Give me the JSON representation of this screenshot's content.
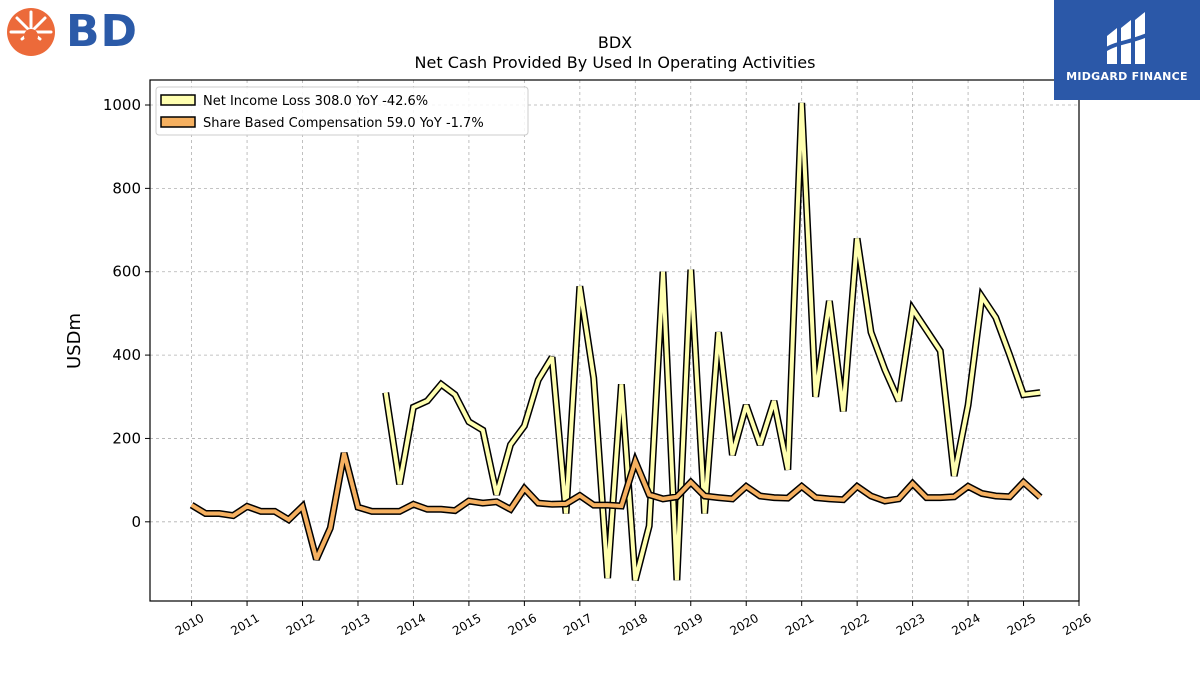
{
  "brand": {
    "company": "BD",
    "partner": "MIDGARD FINANCE"
  },
  "chart_data": {
    "type": "line",
    "title": "BDX",
    "subtitle": "Net Cash Provided By Used In Operating Activities",
    "ylabel": "USDm",
    "xlim": [
      2009.25,
      2026.0
    ],
    "ylim": [
      -190,
      1060
    ],
    "yticks": [
      0,
      200,
      400,
      600,
      800,
      1000
    ],
    "xticks": [
      "2010",
      "2011",
      "2012",
      "2013",
      "2014",
      "2015",
      "2016",
      "2017",
      "2018",
      "2019",
      "2020",
      "2021",
      "2022",
      "2023",
      "2024",
      "2025",
      "2026"
    ],
    "grid": true,
    "legend_position": "top-left",
    "series": [
      {
        "name": "Net Income Loss  308.0 YoY -42.6%",
        "color": "#ffffb0",
        "x": [
          2013.5,
          2013.75,
          2014.0,
          2014.25,
          2014.5,
          2014.75,
          2015.0,
          2015.25,
          2015.5,
          2015.75,
          2016.0,
          2016.25,
          2016.5,
          2016.75,
          2017.0,
          2017.25,
          2017.5,
          2017.75,
          2018.0,
          2018.25,
          2018.5,
          2018.75,
          2019.0,
          2019.25,
          2019.5,
          2019.75,
          2020.0,
          2020.25,
          2020.5,
          2020.75,
          2021.0,
          2021.25,
          2021.5,
          2021.75,
          2022.0,
          2022.25,
          2022.5,
          2022.75,
          2023.0,
          2023.25,
          2023.5,
          2023.75,
          2024.0,
          2024.25,
          2024.5,
          2024.75,
          2025.0,
          2025.3
        ],
        "values": [
          310,
          90,
          275,
          290,
          330,
          305,
          240,
          220,
          65,
          185,
          230,
          340,
          395,
          20,
          565,
          345,
          -135,
          330,
          -140,
          -10,
          600,
          -140,
          605,
          20,
          455,
          160,
          280,
          185,
          290,
          125,
          1005,
          300,
          530,
          265,
          680,
          455,
          365,
          290,
          510,
          460,
          410,
          110,
          280,
          540,
          490,
          400,
          305,
          310
        ]
      },
      {
        "name": "Share Based Compensation  59.0 YoY -1.7%",
        "color": "#f5b060",
        "x": [
          2010.0,
          2010.25,
          2010.5,
          2010.75,
          2011.0,
          2011.25,
          2011.5,
          2011.75,
          2012.0,
          2012.25,
          2012.5,
          2012.75,
          2013.0,
          2013.25,
          2013.5,
          2013.75,
          2014.0,
          2014.25,
          2014.5,
          2014.75,
          2015.0,
          2015.25,
          2015.5,
          2015.75,
          2016.0,
          2016.25,
          2016.5,
          2016.75,
          2017.0,
          2017.25,
          2017.5,
          2017.75,
          2018.0,
          2018.25,
          2018.5,
          2018.75,
          2019.0,
          2019.25,
          2019.5,
          2019.75,
          2020.0,
          2020.25,
          2020.5,
          2020.75,
          2021.0,
          2021.25,
          2021.5,
          2021.75,
          2022.0,
          2022.25,
          2022.5,
          2022.75,
          2023.0,
          2023.25,
          2023.5,
          2023.75,
          2024.0,
          2024.25,
          2024.5,
          2024.75,
          2025.0,
          2025.3
        ],
        "values": [
          40,
          20,
          20,
          15,
          37,
          25,
          25,
          5,
          37,
          -90,
          -15,
          165,
          35,
          25,
          25,
          25,
          42,
          30,
          30,
          27,
          50,
          45,
          48,
          30,
          80,
          45,
          42,
          43,
          63,
          40,
          40,
          38,
          145,
          65,
          55,
          60,
          95,
          62,
          58,
          55,
          85,
          62,
          58,
          57,
          85,
          58,
          55,
          53,
          85,
          62,
          50,
          55,
          92,
          58,
          58,
          60,
          85,
          68,
          62,
          60,
          95,
          59
        ]
      }
    ]
  }
}
